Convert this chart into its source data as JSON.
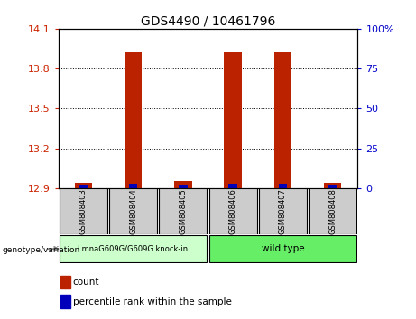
{
  "title": "GDS4490 / 10461796",
  "samples": [
    "GSM808403",
    "GSM808404",
    "GSM808405",
    "GSM808406",
    "GSM808407",
    "GSM808408"
  ],
  "count_values": [
    12.94,
    13.92,
    12.95,
    13.92,
    13.92,
    12.94
  ],
  "percentile_values": [
    2,
    3,
    2,
    3,
    3,
    2
  ],
  "ylim_left": [
    12.9,
    14.1
  ],
  "yticks_left": [
    12.9,
    13.2,
    13.5,
    13.8,
    14.1
  ],
  "ylim_right": [
    0,
    100
  ],
  "yticks_right": [
    0,
    25,
    50,
    75,
    100
  ],
  "bar_bottom": 12.9,
  "count_color": "#bb2200",
  "percentile_color": "#0000bb",
  "grid_color": "black",
  "left_tick_color": "#cc2200",
  "right_tick_color": "#0000cc",
  "group1_label": "LmnaG609G/G609G knock-in",
  "group2_label": "wild type",
  "group1_color": "#ccffcc",
  "group2_color": "#66ee66",
  "sample_box_color": "#cccccc",
  "genotype_label": "genotype/variation",
  "legend_count": "count",
  "legend_percentile": "percentile rank within the sample",
  "bar_width": 0.35,
  "blue_bar_width": 0.18
}
